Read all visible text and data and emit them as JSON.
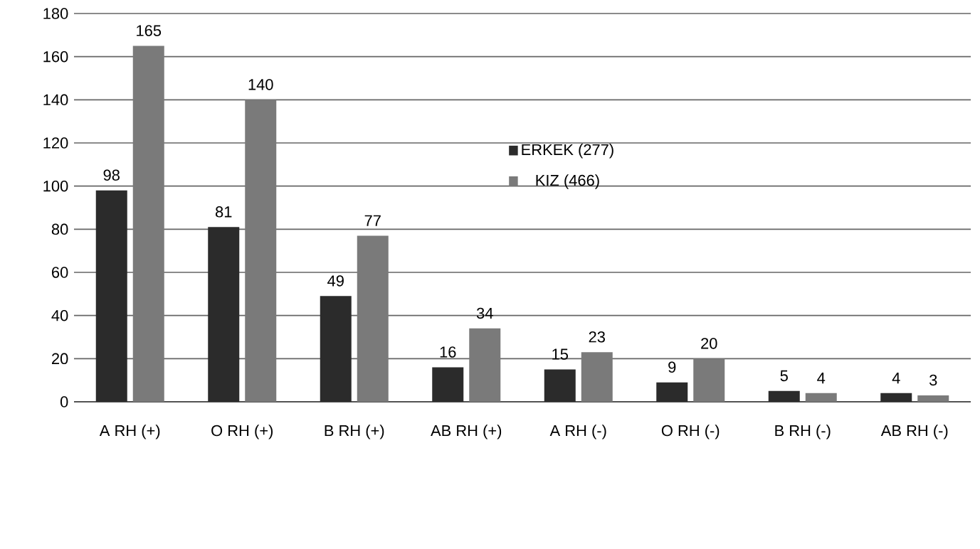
{
  "chart_data": {
    "type": "bar",
    "categories": [
      "A RH (+)",
      "O RH (+)",
      "B RH (+)",
      "AB RH (+)",
      "A RH (-)",
      "O RH (-)",
      "B RH (-)",
      "AB RH (-)"
    ],
    "series": [
      {
        "name": "ERKEK (277)",
        "color": "#2b2b2b",
        "values": [
          98,
          81,
          49,
          16,
          15,
          9,
          5,
          4
        ]
      },
      {
        "name": "KIZ (466)",
        "color": "#7a7a7a",
        "values": [
          165,
          140,
          77,
          34,
          23,
          20,
          4,
          3
        ]
      }
    ],
    "ylim": [
      0,
      180
    ],
    "yticks": [
      0,
      20,
      40,
      60,
      80,
      100,
      120,
      140,
      160,
      180
    ],
    "grid": "y",
    "legend": "top",
    "data_labels": true
  }
}
